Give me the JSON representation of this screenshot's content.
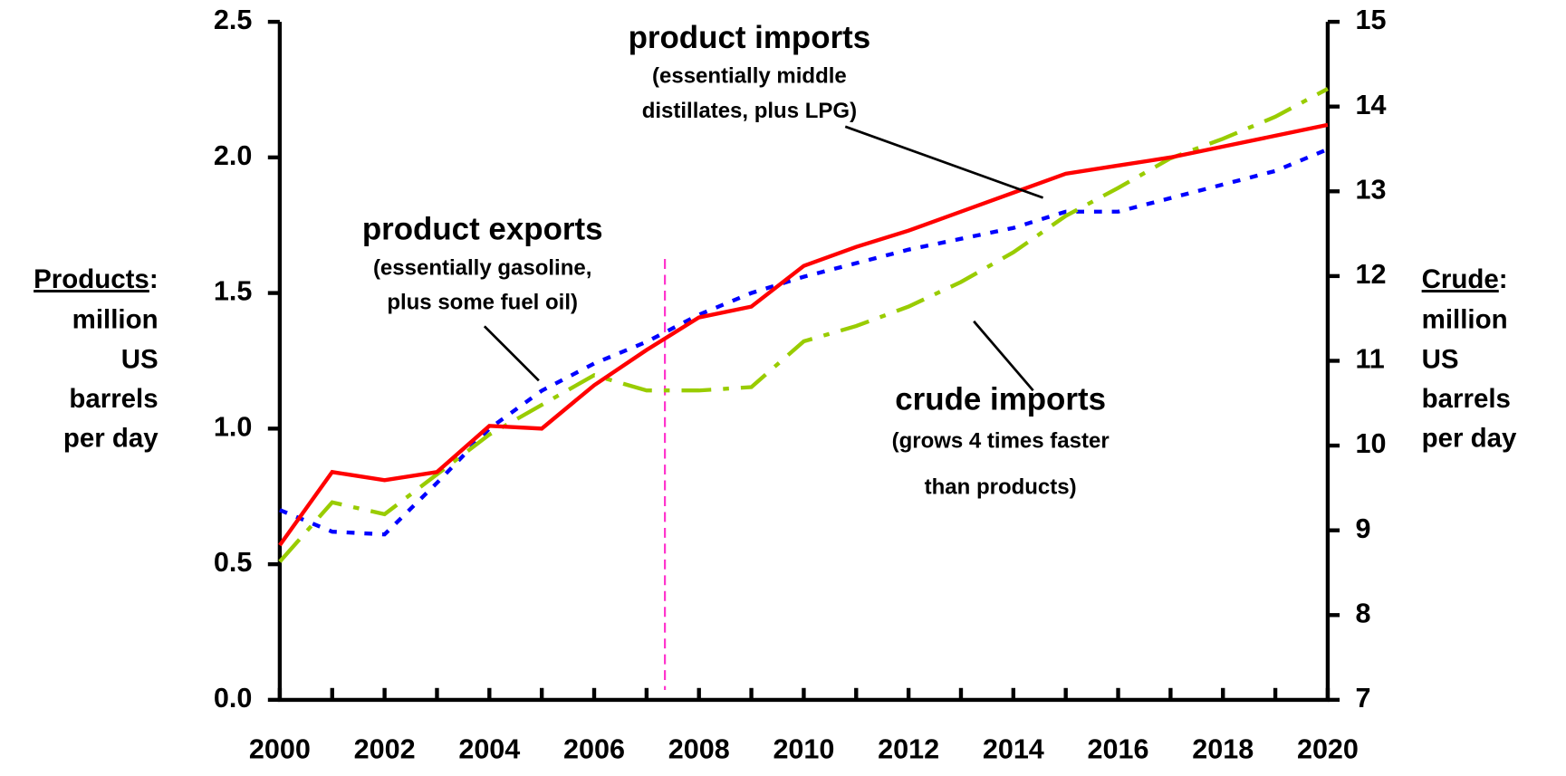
{
  "chart_data": {
    "type": "line",
    "x": [
      2000,
      2001,
      2002,
      2003,
      2004,
      2005,
      2006,
      2007,
      2008,
      2009,
      2010,
      2011,
      2012,
      2013,
      2014,
      2015,
      2016,
      2017,
      2018,
      2019,
      2020
    ],
    "xlim": [
      2000,
      2020
    ],
    "xticks": [
      2000,
      2002,
      2004,
      2006,
      2008,
      2010,
      2012,
      2014,
      2016,
      2018,
      2020
    ],
    "ylim": [
      0,
      2.5
    ],
    "yticks": [
      {
        "value": 0,
        "label": "0.0"
      },
      0.5,
      {
        "value": 1,
        "label": "1.0"
      },
      1.5,
      {
        "value": 2,
        "label": "2.0"
      },
      2.5
    ],
    "y2lim": [
      7,
      15
    ],
    "y2ticks": [
      7,
      8,
      9,
      10,
      11,
      12,
      13,
      14,
      15
    ],
    "y_label": {
      "emphasis": "Products",
      "suffix": ":",
      "lines": [
        "million",
        "US",
        "barrels",
        "per day"
      ]
    },
    "y2_label": {
      "emphasis": "Crude",
      "suffix": ":",
      "lines": [
        "million",
        "US",
        "barrels",
        "per day"
      ]
    },
    "vline": 2007.35,
    "vline_color": "#ff33cc",
    "series": [
      {
        "name": "product imports",
        "color": "#ff0000",
        "dash": "solid",
        "values": [
          0.57,
          0.84,
          0.81,
          0.84,
          1.01,
          1.0,
          1.16,
          1.29,
          1.41,
          1.45,
          1.6,
          1.67,
          1.73,
          1.8,
          1.87,
          1.94,
          1.97,
          2.0,
          2.04,
          2.08,
          2.12
        ]
      },
      {
        "name": "product exports",
        "color": "#0000ff",
        "dash": "dotted",
        "values": [
          0.7,
          0.62,
          0.61,
          0.8,
          1.0,
          1.14,
          1.24,
          1.32,
          1.42,
          1.5,
          1.56,
          1.61,
          1.66,
          1.7,
          1.74,
          1.8,
          1.8,
          1.85,
          1.9,
          1.95,
          2.03
        ]
      },
      {
        "name": "crude imports",
        "color": "#99cc00",
        "dash": "dashdot",
        "axis": "y2",
        "values": [
          8.63,
          9.33,
          9.19,
          9.66,
          10.13,
          10.48,
          10.83,
          10.65,
          10.65,
          10.69,
          11.23,
          11.41,
          11.64,
          11.93,
          12.28,
          12.71,
          13.04,
          13.39,
          13.62,
          13.88,
          14.21
        ]
      }
    ],
    "annotations": [
      {
        "title": "product imports",
        "lines": [
          "(essentially middle",
          "distillates, plus LPG)"
        ]
      },
      {
        "title": "product exports",
        "lines": [
          "(essentially gasoline,",
          "plus some fuel oil)"
        ]
      },
      {
        "title": "crude imports",
        "lines": [
          "(grows 4 times faster",
          "than products)"
        ]
      }
    ]
  }
}
